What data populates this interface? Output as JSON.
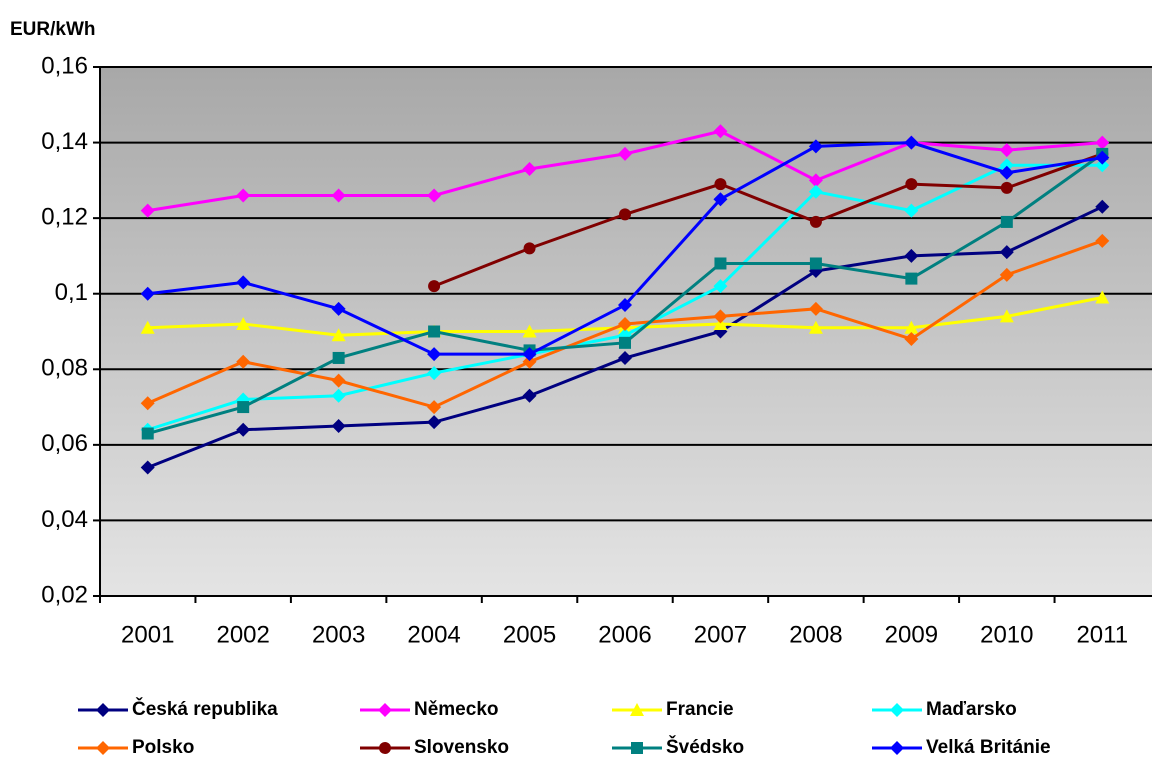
{
  "chart_data": {
    "type": "line",
    "y_label": "EUR/kWh",
    "categories": [
      "2001",
      "2002",
      "2003",
      "2004",
      "2005",
      "2006",
      "2007",
      "2008",
      "2009",
      "2010",
      "2011"
    ],
    "ylim": [
      0.02,
      0.16
    ],
    "yticks": [
      {
        "value": 0.02,
        "label": "0,02"
      },
      {
        "value": 0.04,
        "label": "0,04"
      },
      {
        "value": 0.06,
        "label": "0,06"
      },
      {
        "value": 0.08,
        "label": "0,08"
      },
      {
        "value": 0.1,
        "label": "0,1"
      },
      {
        "value": 0.12,
        "label": "0,12"
      },
      {
        "value": 0.14,
        "label": "0,14"
      },
      {
        "value": 0.16,
        "label": "0,16"
      }
    ],
    "grid": true,
    "series": [
      {
        "name": "Česká republika",
        "color": "#000080",
        "marker": "diamond",
        "values": [
          0.054,
          0.064,
          0.065,
          0.066,
          0.073,
          0.083,
          0.09,
          0.106,
          0.11,
          0.111,
          0.123
        ]
      },
      {
        "name": "Německo",
        "color": "#ff00ff",
        "marker": "diamond",
        "values": [
          0.122,
          0.126,
          0.126,
          0.126,
          0.133,
          0.137,
          0.143,
          0.13,
          0.14,
          0.138,
          0.14
        ]
      },
      {
        "name": "Francie",
        "color": "#ffff00",
        "marker": "triangle",
        "values": [
          0.091,
          0.092,
          0.089,
          0.09,
          0.09,
          0.091,
          0.092,
          0.091,
          0.091,
          0.094,
          0.099
        ]
      },
      {
        "name": "Maďarsko",
        "color": "#00ffff",
        "marker": "diamond",
        "values": [
          0.064,
          0.072,
          0.073,
          0.079,
          0.084,
          0.089,
          0.102,
          0.127,
          0.122,
          0.134,
          0.134
        ]
      },
      {
        "name": "Polsko",
        "color": "#ff6600",
        "marker": "diamond",
        "values": [
          0.071,
          0.082,
          0.077,
          0.07,
          0.082,
          0.092,
          0.094,
          0.096,
          0.088,
          0.105,
          0.114
        ]
      },
      {
        "name": "Slovensko",
        "color": "#800000",
        "marker": "circle",
        "values": [
          null,
          null,
          null,
          0.102,
          0.112,
          0.121,
          0.129,
          0.119,
          0.129,
          0.128,
          0.137
        ]
      },
      {
        "name": "Švédsko",
        "color": "#008080",
        "marker": "square",
        "values": [
          0.063,
          0.07,
          0.083,
          0.09,
          0.085,
          0.087,
          0.108,
          0.108,
          0.104,
          0.119,
          0.137
        ]
      },
      {
        "name": "Velká Británie",
        "color": "#0000ff",
        "marker": "diamond",
        "values": [
          0.1,
          0.103,
          0.096,
          0.084,
          0.084,
          0.097,
          0.125,
          0.139,
          0.14,
          0.132,
          0.136
        ]
      }
    ]
  }
}
